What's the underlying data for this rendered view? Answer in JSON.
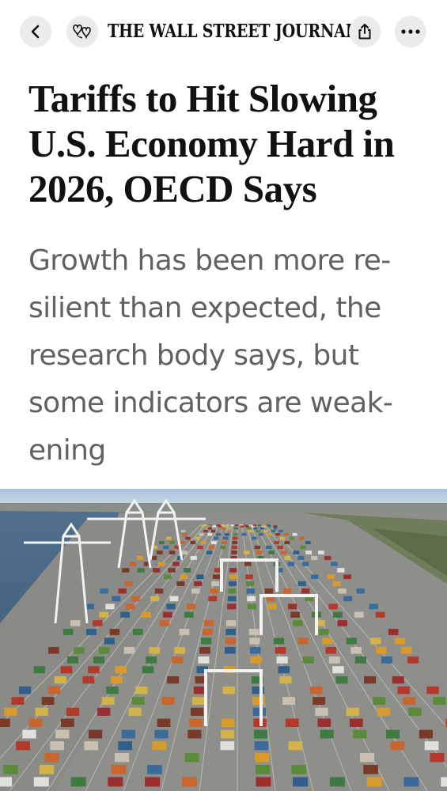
{
  "header": {
    "masthead": "THE WALL STREET JOURNAL.",
    "back_icon": "chevron-left-icon",
    "logo_icon": "wsj-logo-icon",
    "share_icon": "share-icon",
    "more_icon": "more-horizontal-icon"
  },
  "article": {
    "headline_lines": [
      "Tariffs to Hit Slowing",
      "U.S. Economy Hard in",
      "2026, OECD Says"
    ],
    "dek_lines": [
      "Growth has been more re-",
      "silient than expected, the",
      "research body says, but",
      "some indicators are weak-",
      "ening"
    ]
  },
  "colors": {
    "text": "#111111",
    "dek": "#616161",
    "button_bg": "#ebebeb"
  }
}
